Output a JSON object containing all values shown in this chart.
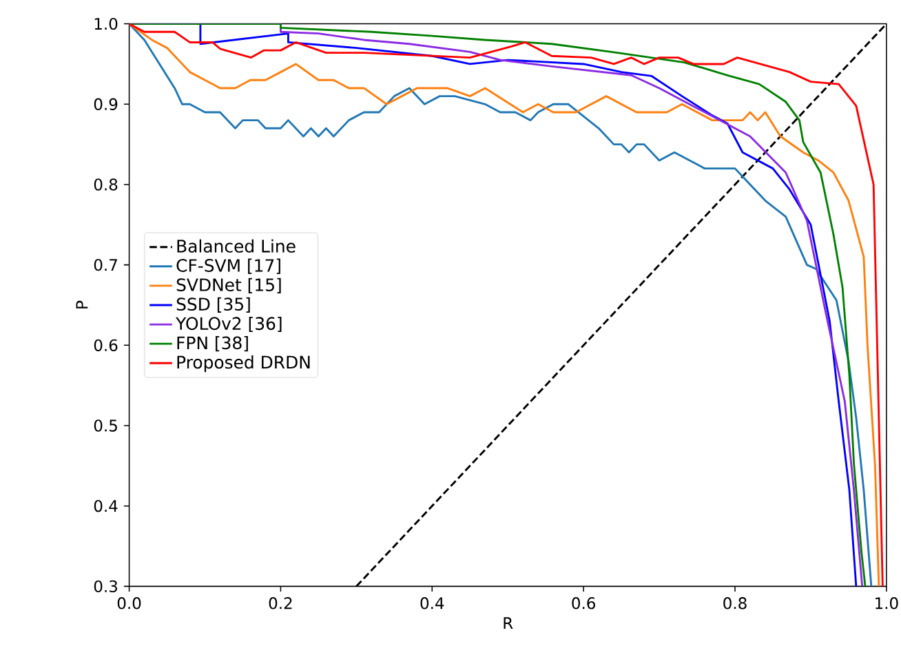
{
  "chart_data": {
    "type": "line",
    "xlabel": "R",
    "ylabel": "P",
    "xlim": [
      0,
      1
    ],
    "ylim": [
      0.3,
      1.0
    ],
    "xticks": [
      {
        "value": 0,
        "label": "0.0"
      },
      {
        "value": 0.2,
        "label": "0.2"
      },
      {
        "value": 0.4,
        "label": "0.4"
      },
      {
        "value": 0.6,
        "label": "0.6"
      },
      {
        "value": 0.8,
        "label": "0.8"
      },
      {
        "value": 1.0,
        "label": "1.0"
      }
    ],
    "yticks": [
      {
        "value": 0.3,
        "label": "0.3"
      },
      {
        "value": 0.4,
        "label": "0.4"
      },
      {
        "value": 0.5,
        "label": "0.5"
      },
      {
        "value": 0.6,
        "label": "0.6"
      },
      {
        "value": 0.7,
        "label": "0.7"
      },
      {
        "value": 0.8,
        "label": "0.8"
      },
      {
        "value": 0.9,
        "label": "0.9"
      },
      {
        "value": 1.0,
        "label": "1.0"
      }
    ],
    "legend": "left",
    "marker": "none",
    "line_style": "solid",
    "series": [
      {
        "name": "Balanced Line",
        "color": "#000000",
        "line_style": "dashed",
        "x": [
          0.3,
          1.0
        ],
        "values": [
          0.3,
          1.0
        ]
      },
      {
        "name": "CF-SVM [17]",
        "color": "#1f77b4",
        "x": [
          0,
          0.02,
          0.04,
          0.06,
          0.07,
          0.08,
          0.1,
          0.12,
          0.14,
          0.15,
          0.17,
          0.18,
          0.2,
          0.21,
          0.23,
          0.24,
          0.25,
          0.26,
          0.27,
          0.29,
          0.31,
          0.33,
          0.35,
          0.37,
          0.39,
          0.41,
          0.43,
          0.47,
          0.49,
          0.51,
          0.53,
          0.54,
          0.56,
          0.58,
          0.62,
          0.64,
          0.65,
          0.66,
          0.67,
          0.68,
          0.7,
          0.72,
          0.76,
          0.8,
          0.82,
          0.84,
          0.867,
          0.895,
          0.907,
          0.934,
          0.95,
          0.96,
          0.97,
          0.98
        ],
        "values": [
          1.0,
          0.98,
          0.95,
          0.92,
          0.9,
          0.9,
          0.89,
          0.89,
          0.87,
          0.88,
          0.88,
          0.87,
          0.87,
          0.88,
          0.86,
          0.87,
          0.86,
          0.87,
          0.86,
          0.88,
          0.89,
          0.89,
          0.91,
          0.92,
          0.9,
          0.91,
          0.91,
          0.9,
          0.89,
          0.89,
          0.88,
          0.89,
          0.9,
          0.9,
          0.87,
          0.85,
          0.85,
          0.84,
          0.85,
          0.85,
          0.83,
          0.84,
          0.82,
          0.82,
          0.8,
          0.78,
          0.76,
          0.7,
          0.695,
          0.656,
          0.58,
          0.51,
          0.42,
          0.3
        ]
      },
      {
        "name": "SVDNet [15]",
        "color": "#ff7f0e",
        "x": [
          0,
          0.03,
          0.05,
          0.08,
          0.1,
          0.12,
          0.14,
          0.16,
          0.18,
          0.2,
          0.22,
          0.25,
          0.27,
          0.29,
          0.31,
          0.34,
          0.36,
          0.38,
          0.42,
          0.45,
          0.47,
          0.52,
          0.54,
          0.56,
          0.59,
          0.63,
          0.67,
          0.71,
          0.73,
          0.77,
          0.81,
          0.82,
          0.83,
          0.84,
          0.86,
          0.89,
          0.91,
          0.93,
          0.95,
          0.97,
          0.975,
          0.985,
          0.99
        ],
        "values": [
          1.0,
          0.98,
          0.97,
          0.94,
          0.93,
          0.92,
          0.92,
          0.93,
          0.93,
          0.94,
          0.95,
          0.93,
          0.93,
          0.92,
          0.92,
          0.9,
          0.91,
          0.92,
          0.92,
          0.91,
          0.92,
          0.89,
          0.9,
          0.89,
          0.89,
          0.91,
          0.89,
          0.89,
          0.9,
          0.88,
          0.88,
          0.89,
          0.88,
          0.89,
          0.86,
          0.84,
          0.83,
          0.815,
          0.78,
          0.71,
          0.6,
          0.45,
          0.3
        ]
      },
      {
        "name": "SSD [35]",
        "color": "#0000ff",
        "x": [
          0,
          0.094,
          0.094,
          0.21,
          0.21,
          0.3,
          0.4,
          0.45,
          0.5,
          0.6,
          0.65,
          0.69,
          0.73,
          0.77,
          0.79,
          0.81,
          0.85,
          0.872,
          0.9,
          0.925,
          0.937,
          0.951,
          0.96
        ],
        "values": [
          1.0,
          1.0,
          0.975,
          0.988,
          0.977,
          0.97,
          0.96,
          0.95,
          0.955,
          0.95,
          0.94,
          0.935,
          0.91,
          0.886,
          0.876,
          0.84,
          0.82,
          0.794,
          0.75,
          0.63,
          0.53,
          0.42,
          0.3
        ]
      },
      {
        "name": "YOLOv2 [36]",
        "color": "#8a2be2",
        "x": [
          0,
          0.2,
          0.2,
          0.25,
          0.31,
          0.37,
          0.45,
          0.49,
          0.558,
          0.663,
          0.7,
          0.76,
          0.82,
          0.867,
          0.895,
          0.92,
          0.945,
          0.957,
          0.968
        ],
        "values": [
          1.0,
          1.0,
          0.99,
          0.988,
          0.98,
          0.975,
          0.965,
          0.955,
          0.947,
          0.936,
          0.92,
          0.89,
          0.86,
          0.815,
          0.755,
          0.64,
          0.53,
          0.42,
          0.3
        ]
      },
      {
        "name": "FPN [38]",
        "color": "#008000",
        "x": [
          0,
          0.2,
          0.2,
          0.32,
          0.4,
          0.47,
          0.558,
          0.645,
          0.733,
          0.79,
          0.832,
          0.867,
          0.885,
          0.89,
          0.913,
          0.93,
          0.942,
          0.951,
          0.957,
          0.967,
          0.972
        ],
        "values": [
          1.0,
          1.0,
          0.995,
          0.99,
          0.985,
          0.98,
          0.975,
          0.964,
          0.952,
          0.936,
          0.925,
          0.903,
          0.88,
          0.853,
          0.815,
          0.738,
          0.672,
          0.563,
          0.453,
          0.343,
          0.3
        ]
      },
      {
        "name": "Proposed DRDN",
        "color": "#ff0000",
        "x": [
          0,
          0.02,
          0.06,
          0.08,
          0.11,
          0.12,
          0.161,
          0.178,
          0.2,
          0.22,
          0.26,
          0.31,
          0.45,
          0.505,
          0.523,
          0.558,
          0.61,
          0.64,
          0.663,
          0.68,
          0.7,
          0.725,
          0.745,
          0.785,
          0.803,
          0.872,
          0.9,
          0.937,
          0.96,
          0.983,
          0.995
        ],
        "values": [
          1.0,
          0.99,
          0.99,
          0.977,
          0.977,
          0.969,
          0.958,
          0.967,
          0.967,
          0.977,
          0.964,
          0.964,
          0.958,
          0.972,
          0.977,
          0.96,
          0.958,
          0.95,
          0.958,
          0.95,
          0.958,
          0.958,
          0.95,
          0.95,
          0.958,
          0.94,
          0.928,
          0.925,
          0.898,
          0.8,
          0.3
        ]
      }
    ]
  }
}
